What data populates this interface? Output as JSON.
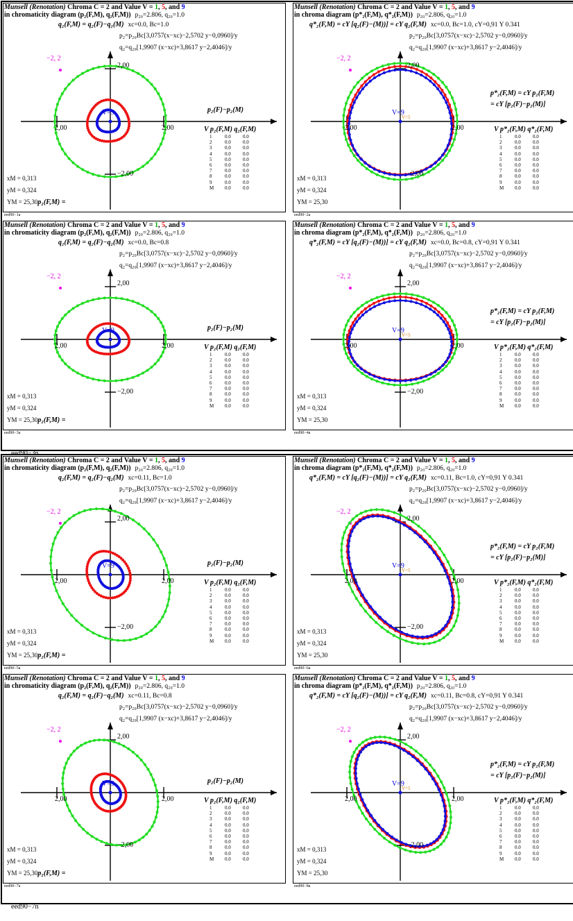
{
  "sheets": [
    {
      "label": "eed90−3n",
      "panels": [
        {
          "id": "eed90−1a",
          "type": "left",
          "xc": "0.0",
          "bc": "1.0",
          "shape": "circ"
        },
        {
          "id": "eed90−2a",
          "type": "right",
          "xc": "0.0",
          "bc": "1.0",
          "shape": "circ"
        },
        {
          "id": "eed90−3a",
          "type": "left",
          "xc": "0.0",
          "bc": "0.8",
          "shape": "circ"
        },
        {
          "id": "eed90−4a",
          "type": "right",
          "xc": "0.0",
          "bc": "0.8",
          "shape": "circ"
        }
      ]
    },
    {
      "label": "eed90−7n",
      "panels": [
        {
          "id": "eed90−5a",
          "type": "left",
          "xc": "0.11",
          "bc": "1.0",
          "shape": "tilt"
        },
        {
          "id": "eed90−6a",
          "type": "right",
          "xc": "0.11",
          "bc": "1.0",
          "shape": "tilt"
        },
        {
          "id": "eed90−7a",
          "type": "left",
          "xc": "0.11",
          "bc": "0.8",
          "shape": "tilt"
        },
        {
          "id": "eed90−8a",
          "type": "right",
          "xc": "0.11",
          "bc": "0.8",
          "shape": "tilt"
        }
      ]
    }
  ],
  "common": {
    "title_a": "Munsell (Renotation)",
    "title_b": " Chroma C = 2 and Value V = ",
    "v1": "1",
    "v5": "5",
    "v9": "9",
    "comma": ", ",
    "and": ", and ",
    "line2_left": "in chromaticity diagram (p₂(F,M), q₂(F,M))",
    "line2_right": "in chroma diagram (p*₂(F,M), q*₂(F,M))",
    "p20": "p₂₀=2.806, q₂₀=1.0",
    "formula_left": "q₂(F,M) = q₂(F)−q₂(M)",
    "formula_right": "q*₂(F,M) = cY [q₂(F)−(M))] = cY q₂(F,M)",
    "p2_eq": "p₂=p₂₀Bc[3,0757(x−xc)−2,5702 y−0,0960]/y",
    "q2_eq": "q₂=q₂₀[1,9907 (x−xc)+3,8617 y−2,4046]/y",
    "cy": "cY=0,91 Y 0.341",
    "mag_label": "−2, 2",
    "tick_pos": "2,00",
    "tick_neg": "−2,00",
    "v_label": "V=9",
    "v_label_small": "V=5",
    "axis_left": "p₂(F)−p₂(M)",
    "axis_right_1": "p*₂(F,M) = cY p₂(F,M)",
    "axis_right_2": "= cY [p₂(F)−p₂(M)]",
    "tbl_head_left": "V p₂(F,M)  q₂(F,M)",
    "tbl_head_right": "V p*₂(F,M)  q*₂(F,M)",
    "rows": [
      [
        "1",
        "0.0",
        "0.0"
      ],
      [
        "2",
        "0.0",
        "0.0"
      ],
      [
        "3",
        "0.0",
        "0.0"
      ],
      [
        "4",
        "0.0",
        "0.0"
      ],
      [
        "5",
        "0.0",
        "0.0"
      ],
      [
        "6",
        "0.0",
        "0.0"
      ],
      [
        "7",
        "0.0",
        "0.0"
      ],
      [
        "8",
        "0.0",
        "0.0"
      ],
      [
        "9",
        "0.0",
        "0.0"
      ],
      [
        "M",
        "0.0",
        "0.0"
      ]
    ],
    "xm": "xM = 0,313",
    "ym": "yM = 0,324",
    "Ym": "YM = 25,30",
    "ym_left_extra": "p₂(F,M) =",
    "colors": {
      "green": "#22dd22",
      "red": "#ee1111",
      "blue": "#1111dd",
      "mag": "#ee00ee",
      "orange": "#cc7700"
    }
  }
}
